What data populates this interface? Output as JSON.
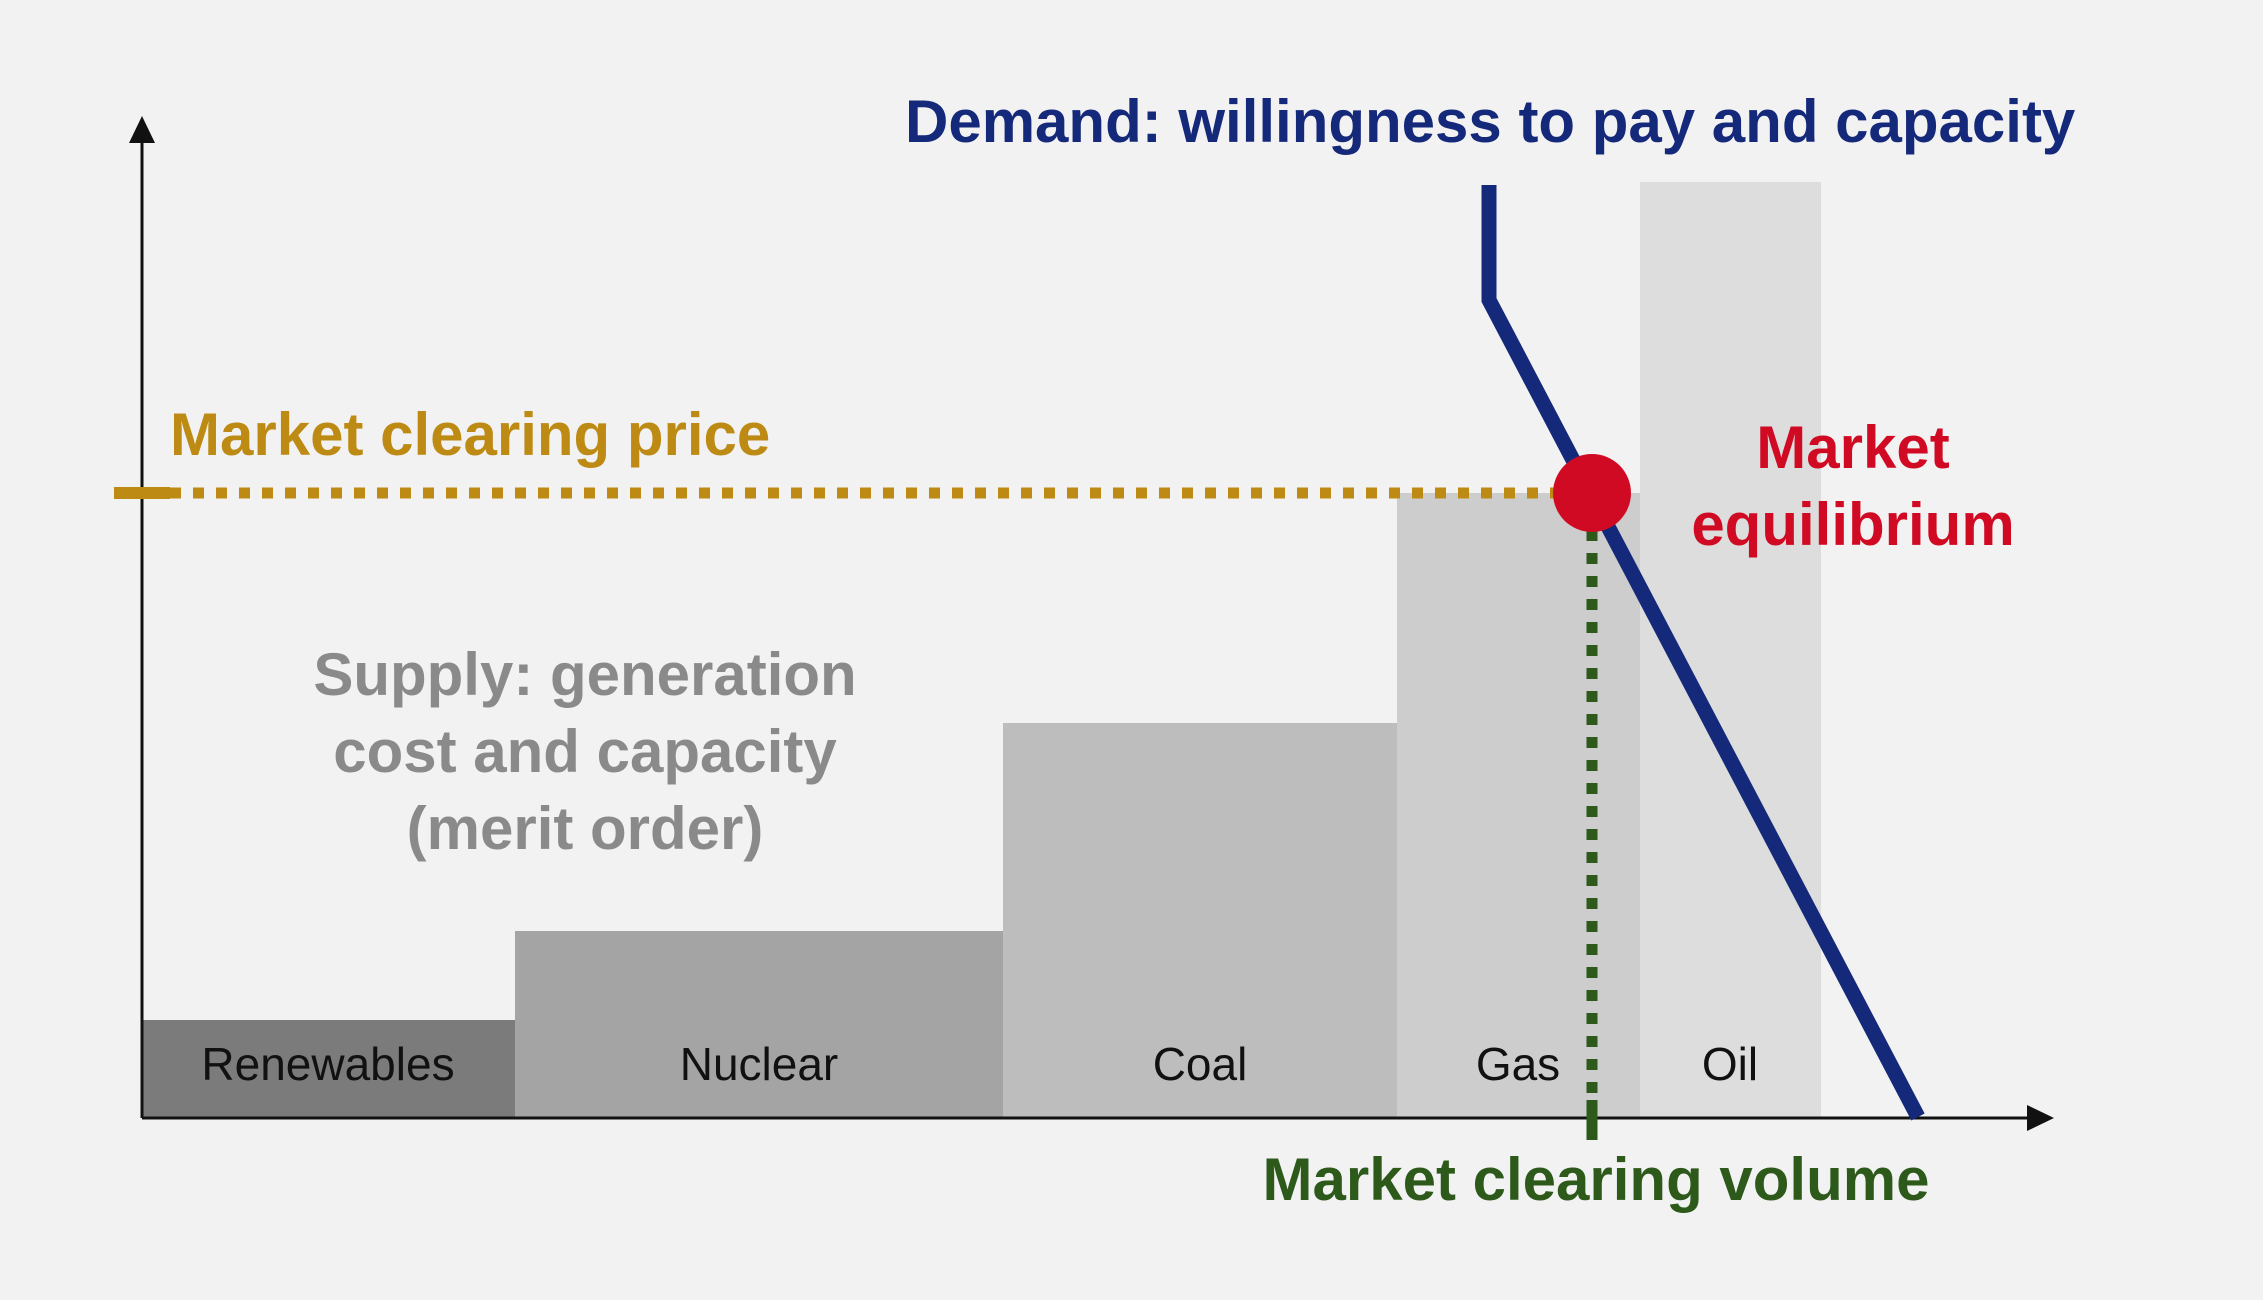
{
  "colors": {
    "background": "#f2f2f3",
    "axis": "#111111",
    "demand": "#15297a",
    "price": "#bd8a14",
    "equilibrium": "#d10a24",
    "volume": "#2d5a1b",
    "supply_text": "#8a8a8a",
    "renewables": "#7b7b7b",
    "nuclear": "#a4a4a4",
    "coal": "#bdbdbd",
    "gas": "#cdcdcd",
    "oil": "#dddddd"
  },
  "labels": {
    "demand": "Demand: willingness to pay and capacity",
    "price": "Market clearing price",
    "equilibrium_line1": "Market",
    "equilibrium_line2": "equilibrium",
    "supply_line1": "Supply: generation",
    "supply_line2": "cost and capacity",
    "supply_line3": "(merit order)",
    "volume": "Market clearing volume"
  },
  "supply_blocks": [
    {
      "name": "Renewables",
      "label": "Renewables"
    },
    {
      "name": "Nuclear",
      "label": "Nuclear"
    },
    {
      "name": "Coal",
      "label": "Coal"
    },
    {
      "name": "Gas",
      "label": "Gas"
    },
    {
      "name": "Oil",
      "label": "Oil"
    }
  ]
}
